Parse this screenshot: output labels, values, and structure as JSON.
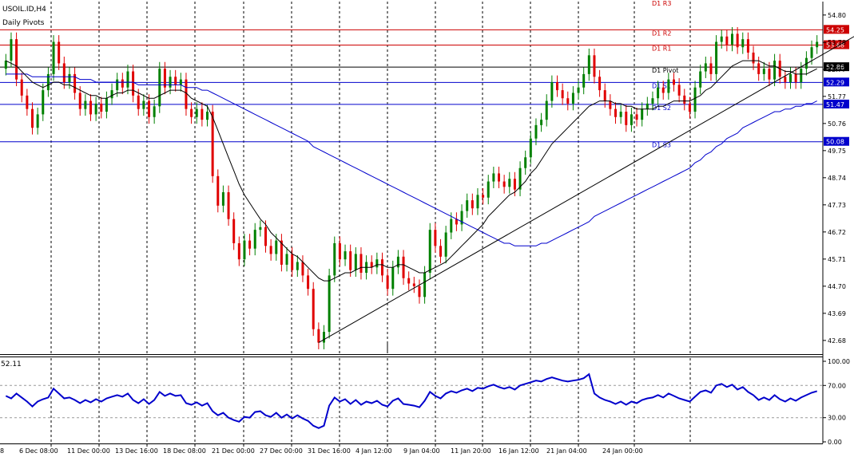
{
  "chart_data": {
    "type": "candlestick",
    "symbol_label": "USOIL.ID,H4",
    "indicator_label": "Daily Pivots",
    "ylim": [
      42.2,
      55.3
    ],
    "yticks": [
      "54.80",
      "53.78",
      "52.77",
      "51.77",
      "50.76",
      "49.75",
      "48.74",
      "47.73",
      "46.72",
      "45.71",
      "44.70",
      "43.69",
      "42.68"
    ],
    "xticks": [
      "6 Dec 08:00",
      "11 Dec 00:00",
      "13 Dec 16:00",
      "18 Dec 08:00",
      "21 Dec 00:00",
      "27 Dec 00:00",
      "31 Dec 16:00",
      "4 Jan 12:00",
      "9 Jan 04:00",
      "11 Jan 20:00",
      "16 Jan 12:00",
      "21 Jan 04:00",
      "24 Jan 00:00"
    ],
    "left_edge_tick": "8",
    "pivots": [
      {
        "name": "D1 R3",
        "value": 55.55,
        "label": "D1 R3",
        "tag": "",
        "color": "#cc0000"
      },
      {
        "name": "D1 R2",
        "value": 54.25,
        "label": "D1 R2",
        "tag": "54.25",
        "color": "#cc0000"
      },
      {
        "name": "D1 R1",
        "value": 53.68,
        "label": "D1 R1",
        "tag": "53.68",
        "color": "#cc0000"
      },
      {
        "name": "D1 Pivot",
        "value": 52.86,
        "label": "D1 Pivot",
        "tag": "52.86",
        "color": "#000000"
      },
      {
        "name": "D1 S1",
        "value": 52.29,
        "label": "D1 S1",
        "tag": "52.29",
        "color": "#0000cc"
      },
      {
        "name": "D1 S2",
        "value": 51.47,
        "label": "D1 S2",
        "tag": "51.47",
        "color": "#0000cc"
      },
      {
        "name": "D1 S3",
        "value": 50.08,
        "label": "D1 S3",
        "tag": "50.08",
        "color": "#0000cc"
      }
    ],
    "closes": [
      53.1,
      53.9,
      52.4,
      51.8,
      51.3,
      50.6,
      51.1,
      52.0,
      52.6,
      53.8,
      53.0,
      52.3,
      52.6,
      51.9,
      51.3,
      51.6,
      51.1,
      51.5,
      51.2,
      51.7,
      52.0,
      52.4,
      52.1,
      52.7,
      51.8,
      51.3,
      51.6,
      51.0,
      51.4,
      52.8,
      52.1,
      52.5,
      52.2,
      52.4,
      51.3,
      51.0,
      51.3,
      50.9,
      51.2,
      48.8,
      47.7,
      48.2,
      47.2,
      46.3,
      45.7,
      46.4,
      46.1,
      46.8,
      46.9,
      46.2,
      45.9,
      46.4,
      45.5,
      45.9,
      45.3,
      45.6,
      45.1,
      44.6,
      43.1,
      42.6,
      43.0,
      45.1,
      46.3,
      45.7,
      46.0,
      45.3,
      45.9,
      45.2,
      45.6,
      45.4,
      45.7,
      45.1,
      44.6,
      45.4,
      45.8,
      45.0,
      44.8,
      44.7,
      44.3,
      45.2,
      46.8,
      46.2,
      45.8,
      46.7,
      47.2,
      47.0,
      47.5,
      47.9,
      47.6,
      48.1,
      48.0,
      48.6,
      48.9,
      48.6,
      48.4,
      48.7,
      48.3,
      49.1,
      49.5,
      50.2,
      50.7,
      50.9,
      51.6,
      52.3,
      52.0,
      51.7,
      51.5,
      51.9,
      52.1,
      52.6,
      53.3,
      52.5,
      52.0,
      51.6,
      51.3,
      51.0,
      51.2,
      50.7,
      51.1,
      50.9,
      51.3,
      51.5,
      51.7,
      52.1,
      51.9,
      52.4,
      52.2,
      51.8,
      51.5,
      51.2,
      52.1,
      52.7,
      53.0,
      52.6,
      53.8,
      54.0,
      53.7,
      54.1,
      53.6,
      53.9,
      53.4,
      53.0,
      52.6,
      52.8,
      52.4,
      53.1,
      52.5,
      52.3,
      52.6,
      52.3,
      52.8,
      53.2,
      53.6,
      53.8
    ],
    "ma_fast": [
      53.1,
      53.0,
      52.9,
      52.7,
      52.5,
      52.3,
      52.2,
      52.1,
      52.2,
      52.3,
      52.3,
      52.2,
      52.2,
      52.1,
      52.0,
      51.9,
      51.8,
      51.8,
      51.7,
      51.7,
      51.8,
      51.9,
      51.9,
      52.0,
      52.0,
      51.9,
      51.8,
      51.7,
      51.7,
      51.8,
      51.9,
      52.0,
      52.0,
      52.0,
      51.9,
      51.7,
      51.6,
      51.5,
      51.4,
      51.0,
      50.5,
      50.0,
      49.5,
      49.0,
      48.5,
      48.1,
      47.8,
      47.5,
      47.2,
      47.0,
      46.7,
      46.5,
      46.3,
      46.1,
      45.9,
      45.8,
      45.6,
      45.4,
      45.2,
      45.0,
      44.9,
      44.9,
      45.0,
      45.1,
      45.2,
      45.2,
      45.3,
      45.4,
      45.4,
      45.4,
      45.5,
      45.5,
      45.4,
      45.4,
      45.5,
      45.5,
      45.4,
      45.3,
      45.2,
      45.2,
      45.3,
      45.4,
      45.5,
      45.6,
      45.8,
      46.0,
      46.2,
      46.4,
      46.6,
      46.8,
      47.0,
      47.3,
      47.5,
      47.7,
      47.9,
      48.1,
      48.2,
      48.4,
      48.6,
      48.9,
      49.1,
      49.4,
      49.7,
      50.0,
      50.2,
      50.4,
      50.6,
      50.8,
      51.0,
      51.2,
      51.4,
      51.5,
      51.6,
      51.6,
      51.6,
      51.5,
      51.5,
      51.4,
      51.4,
      51.3,
      51.3,
      51.3,
      51.3,
      51.4,
      51.4,
      51.5,
      51.6,
      51.6,
      51.6,
      51.6,
      51.7,
      51.8,
      52.0,
      52.1,
      52.3,
      52.5,
      52.7,
      52.9,
      53.0,
      53.1,
      53.1,
      53.1,
      53.1,
      53.0,
      52.9,
      52.9,
      52.8,
      52.7,
      52.7,
      52.6,
      52.6,
      52.6,
      52.7,
      52.8
    ],
    "ma_slow": [
      52.6,
      52.6,
      52.6,
      52.6,
      52.6,
      52.5,
      52.5,
      52.5,
      52.5,
      52.5,
      52.5,
      52.5,
      52.5,
      52.5,
      52.4,
      52.4,
      52.4,
      52.3,
      52.3,
      52.3,
      52.3,
      52.3,
      52.3,
      52.3,
      52.3,
      52.2,
      52.2,
      52.2,
      52.2,
      52.2,
      52.2,
      52.2,
      52.2,
      52.2,
      52.1,
      52.1,
      52.1,
      52.0,
      52.0,
      51.9,
      51.8,
      51.7,
      51.6,
      51.5,
      51.4,
      51.3,
      51.2,
      51.1,
      51.0,
      50.9,
      50.8,
      50.7,
      50.6,
      50.5,
      50.4,
      50.3,
      50.2,
      50.1,
      49.9,
      49.8,
      49.7,
      49.6,
      49.5,
      49.4,
      49.3,
      49.2,
      49.1,
      49.0,
      48.9,
      48.8,
      48.7,
      48.6,
      48.5,
      48.4,
      48.3,
      48.2,
      48.1,
      48.0,
      47.9,
      47.8,
      47.7,
      47.6,
      47.5,
      47.4,
      47.3,
      47.2,
      47.1,
      47.0,
      46.9,
      46.8,
      46.7,
      46.6,
      46.5,
      46.4,
      46.3,
      46.3,
      46.2,
      46.2,
      46.2,
      46.2,
      46.2,
      46.3,
      46.3,
      46.4,
      46.5,
      46.6,
      46.7,
      46.8,
      46.9,
      47.0,
      47.1,
      47.3,
      47.4,
      47.5,
      47.6,
      47.7,
      47.8,
      47.9,
      48.0,
      48.1,
      48.2,
      48.3,
      48.4,
      48.5,
      48.6,
      48.7,
      48.8,
      48.9,
      49.0,
      49.1,
      49.3,
      49.4,
      49.6,
      49.7,
      49.9,
      50.0,
      50.2,
      50.3,
      50.4,
      50.6,
      50.7,
      50.8,
      50.9,
      51.0,
      51.1,
      51.2,
      51.2,
      51.3,
      51.3,
      51.4,
      51.4,
      51.5,
      51.5,
      51.6
    ],
    "trendline": [
      [
        59,
        42.6
      ],
      [
        160,
        54.0
      ]
    ],
    "rsi": {
      "label": "52.11",
      "ylim": [
        0,
        100
      ],
      "levels": [
        30,
        70
      ],
      "yticks": [
        "100.00",
        "70.00",
        "30.00",
        "0.00"
      ],
      "values": [
        57,
        54,
        60,
        55,
        50,
        44,
        50,
        53,
        55,
        66,
        60,
        54,
        55,
        52,
        48,
        52,
        49,
        53,
        50,
        54,
        56,
        58,
        56,
        60,
        52,
        48,
        53,
        47,
        52,
        62,
        57,
        60,
        57,
        58,
        48,
        46,
        49,
        45,
        48,
        38,
        33,
        36,
        30,
        27,
        25,
        31,
        30,
        37,
        38,
        33,
        31,
        36,
        30,
        34,
        29,
        33,
        29,
        26,
        20,
        17,
        20,
        45,
        55,
        50,
        53,
        47,
        52,
        46,
        50,
        48,
        51,
        46,
        44,
        51,
        54,
        47,
        46,
        45,
        43,
        51,
        62,
        57,
        54,
        60,
        63,
        61,
        64,
        66,
        63,
        67,
        66,
        69,
        71,
        68,
        66,
        68,
        65,
        70,
        72,
        74,
        76,
        75,
        78,
        80,
        78,
        76,
        75,
        76,
        77,
        79,
        84,
        60,
        55,
        52,
        50,
        47,
        50,
        46,
        50,
        48,
        52,
        54,
        55,
        58,
        55,
        60,
        57,
        54,
        52,
        50,
        56,
        62,
        64,
        61,
        70,
        72,
        68,
        71,
        65,
        68,
        62,
        58,
        52,
        55,
        52,
        58,
        53,
        50,
        54,
        51,
        55,
        58,
        61,
        63
      ]
    }
  }
}
